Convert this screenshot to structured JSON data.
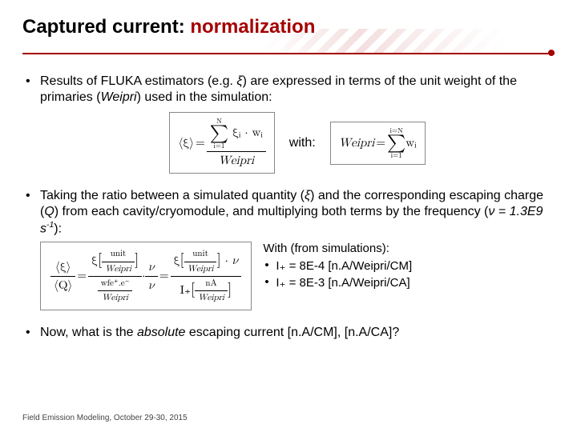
{
  "title_prefix": "Captured current: ",
  "title_accent": "normalization",
  "bullets": {
    "b1_pre": "Results of FLUKA estimators (e.g. ",
    "b1_xi": "ξ",
    "b1_mid": ") are expressed in terms of the unit weight of the primaries (",
    "b1_weipri": "Weipri",
    "b1_post": ") used in the simulation:",
    "b2_pre": "Taking the ratio between a simulated quantity (",
    "b2_xi": "ξ",
    "b2_mid": ") and the corresponding escaping charge (",
    "b2_Q": "Q",
    "b2_mid2": ") from each cavity/cryomodule, and multiplying both terms by the frequency (",
    "b2_nu": "ν = 1.3E9 s",
    "b2_exp": "-1",
    "b2_post": "):",
    "b3": "Now, what is the ",
    "b3_it": "absolute",
    "b3_post": " escaping current [n.A/CM], [n.A/CA]?"
  },
  "eq1": {
    "lhs": "⟨ξ⟩",
    "sum_upper": "N",
    "sum_lower": "i=1",
    "sum_body": "ξᵢ · wᵢ",
    "den": "Weipri"
  },
  "with": "with:",
  "eq2": {
    "lhs": "Weipri",
    "sum_upper": "i=N",
    "sum_lower": "i=1",
    "body": "wᵢ"
  },
  "eq3": {
    "lhs_top": "⟨ξ⟩",
    "lhs_bot": "⟨Q⟩",
    "t1_num": "ξ",
    "t1_unit": "unit",
    "t1_den": "Weipri",
    "t2_num": "wfe⁺.e⁻",
    "t2_den": "Weipri",
    "nu": "ν",
    "t3_num": "ξ",
    "t3_unit": "unit",
    "t3_den": "Weipri",
    "t4_top": "nA",
    "t4_bot": "Weipri",
    "Iplus": "I₊"
  },
  "sim": {
    "head": "With (from simulations):",
    "line1": "I₊ = 8E-4 [n.A/Weipri/CM]",
    "line2": "I₊ = 8E-3 [n.A/Weipri/CA]"
  },
  "footer": "Field Emission Modeling, October 29-30, 2015",
  "colors": {
    "accent": "#a40000"
  }
}
